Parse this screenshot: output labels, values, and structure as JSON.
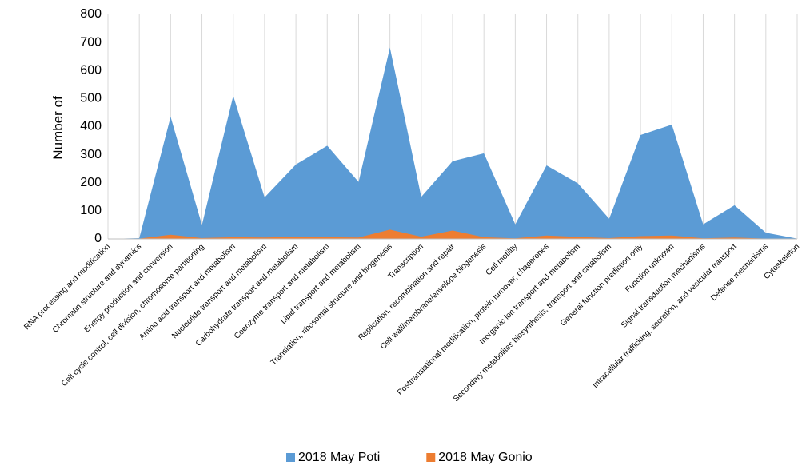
{
  "chart_data": {
    "type": "area",
    "y_label": "Number of",
    "categories": [
      "RNA processing and modification",
      "Chromatin structure and dynamics",
      "Energy production and conversion",
      "Cell cycle control, cell division, chromosome partitioning",
      "Amino acid transport and metabolism",
      "Nucleotide transport and metabolism",
      "Carbohydrate transport and metabolism",
      "Coenzyme transport and metabolism",
      "Lipid transport and metabolism",
      "Translation, ribosomal structure and biogenesis",
      "Transcription",
      "Replication, recombination and repair",
      "Cell wall/membrane/envelope biogenesis",
      "Cell motility",
      "Posttranslational modification, protein turnover, chaperones",
      "Inorganic ion transport and metabolism",
      "Secondary metabolites biosynthesis, transport and catabolism",
      "General function prediction only",
      "Function unknown",
      "Signal transduction mechanisms",
      "Intracellular trafficking, secretion, and vesicular transport",
      "Defense mechanisms",
      "Cytoskeleton"
    ],
    "series": [
      {
        "name": "2018 May Poti",
        "color": "#5b9bd5",
        "values": [
          0,
          3,
          435,
          50,
          510,
          148,
          265,
          332,
          203,
          682,
          150,
          277,
          305,
          52,
          262,
          198,
          72,
          370,
          407,
          52,
          120,
          22,
          1
        ]
      },
      {
        "name": "2018 May Gonio",
        "color": "#ed7d31",
        "values": [
          0,
          1,
          15,
          3,
          6,
          5,
          7,
          6,
          5,
          33,
          8,
          30,
          6,
          2,
          12,
          7,
          3,
          10,
          12,
          2,
          5,
          1,
          0
        ]
      }
    ],
    "ylim": [
      0,
      800
    ],
    "yticks": [
      0,
      100,
      200,
      300,
      400,
      500,
      600,
      700,
      800
    ],
    "grid": "x",
    "legend": "bottom"
  }
}
